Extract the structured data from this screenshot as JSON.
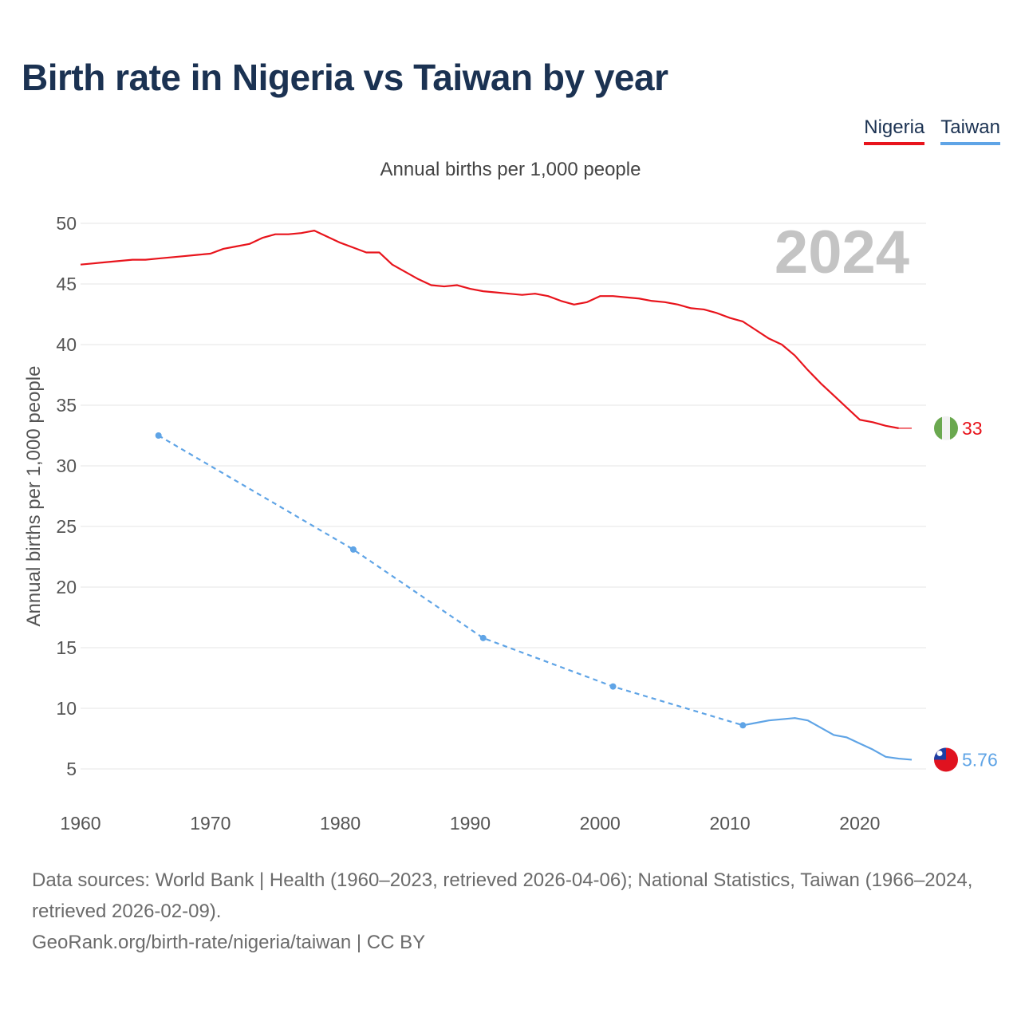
{
  "title": "Birth rate in Nigeria vs Taiwan by year",
  "legend": [
    {
      "label": "Nigeria",
      "color": "#e8141c"
    },
    {
      "label": "Taiwan",
      "color": "#5fa4e6"
    }
  ],
  "footer": {
    "sources": "Data sources: World Bank | Health (1960–2023, retrieved 2026-04-06); National Statistics, Taiwan (1966–2024, retrieved 2026-02-09).",
    "credit": "GeoRank.org/birth-rate/nigeria/taiwan | CC BY"
  },
  "chart_data": {
    "type": "line",
    "title": "Birth rate in Nigeria vs Taiwan by year",
    "subtitle": "Annual births per 1,000 people",
    "ylabel": "Annual births per 1,000 people",
    "xlabel": "",
    "year_watermark": "2024",
    "xlim": [
      1960,
      2024
    ],
    "ylim": [
      3,
      51
    ],
    "xticks": [
      1960,
      1970,
      1980,
      1990,
      2000,
      2010,
      2020
    ],
    "yticks": [
      5,
      10,
      15,
      20,
      25,
      30,
      35,
      40,
      45,
      50
    ],
    "grid": true,
    "series": [
      {
        "name": "Nigeria",
        "color": "#e8141c",
        "end_label": "33",
        "x": [
          1960,
          1961,
          1962,
          1963,
          1964,
          1965,
          1966,
          1967,
          1968,
          1969,
          1970,
          1971,
          1972,
          1973,
          1974,
          1975,
          1976,
          1977,
          1978,
          1979,
          1980,
          1981,
          1982,
          1983,
          1984,
          1985,
          1986,
          1987,
          1988,
          1989,
          1990,
          1991,
          1992,
          1993,
          1994,
          1995,
          1996,
          1997,
          1998,
          1999,
          2000,
          2001,
          2002,
          2003,
          2004,
          2005,
          2006,
          2007,
          2008,
          2009,
          2010,
          2011,
          2012,
          2013,
          2014,
          2015,
          2016,
          2017,
          2018,
          2019,
          2020,
          2021,
          2022,
          2023
        ],
        "y": [
          46.6,
          46.7,
          46.8,
          46.9,
          47.0,
          47.0,
          47.1,
          47.2,
          47.3,
          47.4,
          47.5,
          47.9,
          48.1,
          48.3,
          48.8,
          49.1,
          49.1,
          49.2,
          49.4,
          48.9,
          48.4,
          48.0,
          47.6,
          47.6,
          46.6,
          46.0,
          45.4,
          44.9,
          44.8,
          44.9,
          44.6,
          44.4,
          44.3,
          44.2,
          44.1,
          44.2,
          44.0,
          43.6,
          43.3,
          43.5,
          44.0,
          44.0,
          43.9,
          43.8,
          43.6,
          43.5,
          43.3,
          43.0,
          42.9,
          42.6,
          42.2,
          41.9,
          41.2,
          40.5,
          40.0,
          39.1,
          37.9,
          36.8,
          35.8,
          34.8,
          33.8,
          33.6,
          33.3,
          33.1
        ],
        "extension": {
          "from": 2023,
          "to": 2024,
          "value": 33.1
        }
      },
      {
        "name": "Taiwan",
        "color": "#5fa4e6",
        "end_label": "5.76",
        "dashed_points": [
          {
            "x": 1966,
            "y": 32.5
          },
          {
            "x": 1981,
            "y": 23.1
          },
          {
            "x": 1991,
            "y": 15.8
          },
          {
            "x": 2001,
            "y": 11.8
          },
          {
            "x": 2011,
            "y": 8.6
          }
        ],
        "solid_x": [
          2011,
          2012,
          2013,
          2014,
          2015,
          2016,
          2017,
          2018,
          2019,
          2020,
          2021,
          2022,
          2023,
          2024
        ],
        "solid_y": [
          8.6,
          8.8,
          9.0,
          9.1,
          9.2,
          9.0,
          8.4,
          7.8,
          7.6,
          7.1,
          6.6,
          6.0,
          5.85,
          5.76
        ]
      }
    ]
  }
}
